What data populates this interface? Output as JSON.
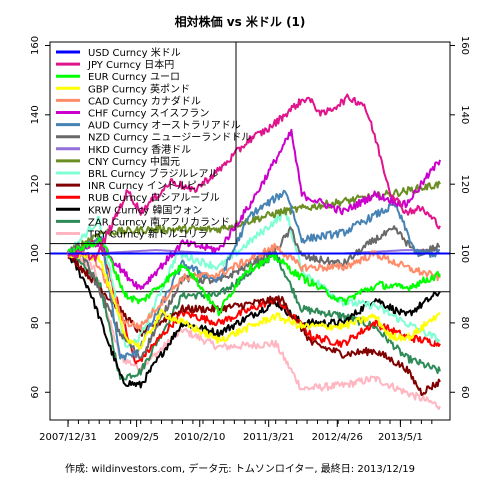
{
  "chart_data": {
    "type": "line",
    "title": "相対株価 vs 米ドル (1)",
    "caption": "作成: wildinvestors.com, データ元: トムソンロイター, 最終日: 2013/12/19",
    "xlabel": "",
    "ylabel": "",
    "x_tick_labels": [
      "2007/12/31",
      "2009/2/5",
      "2010/2/10",
      "2011/3/21",
      "2012/4/26",
      "2013/5/1"
    ],
    "x_tick_dates": [
      "2007-12-31",
      "2009-02-05",
      "2010-02-10",
      "2011-03-21",
      "2012-04-26",
      "2013-05-01"
    ],
    "x_range": [
      "2007-12-31",
      "2013-12-19"
    ],
    "ylim": [
      52,
      161
    ],
    "y_ticks": [
      60,
      80,
      100,
      120,
      140,
      160
    ],
    "y_axes": "left-and-right",
    "grid": false,
    "legend_position": "top-left",
    "reference_lines": [
      {
        "orientation": "horizontal",
        "value": 100,
        "color": "#0000ff"
      },
      {
        "orientation": "horizontal",
        "value": 89,
        "color": "#000000"
      }
    ],
    "series": [
      {
        "name": "USD Curncy 米ドル",
        "color": "#0000ff",
        "points": [
          [
            "2007-12-31",
            100
          ],
          [
            "2013-12-19",
            100
          ]
        ]
      },
      {
        "name": "JPY Curncy 日本円",
        "color": "#e0148c",
        "points": [
          [
            "2007-12-31",
            100
          ],
          [
            "2008-06-15",
            99
          ],
          [
            "2008-12-15",
            118
          ],
          [
            "2009-03-01",
            112
          ],
          [
            "2009-09-01",
            121
          ],
          [
            "2010-01-01",
            118
          ],
          [
            "2010-06-01",
            124
          ],
          [
            "2010-12-01",
            133
          ],
          [
            "2011-03-21",
            136
          ],
          [
            "2011-09-01",
            143
          ],
          [
            "2011-11-01",
            145
          ],
          [
            "2012-02-01",
            140
          ],
          [
            "2012-07-01",
            145
          ],
          [
            "2012-10-01",
            143
          ],
          [
            "2012-12-01",
            134
          ],
          [
            "2013-03-01",
            118
          ],
          [
            "2013-06-01",
            112
          ],
          [
            "2013-09-01",
            113
          ],
          [
            "2013-12-19",
            108
          ]
        ]
      },
      {
        "name": "EUR Curncy ユーロ",
        "color": "#00ff00",
        "points": [
          [
            "2007-12-31",
            100
          ],
          [
            "2008-07-15",
            104
          ],
          [
            "2008-12-01",
            88
          ],
          [
            "2009-03-01",
            86
          ],
          [
            "2009-11-15",
            97
          ],
          [
            "2010-06-01",
            83
          ],
          [
            "2010-11-01",
            95
          ],
          [
            "2011-05-01",
            99
          ],
          [
            "2011-09-01",
            94
          ],
          [
            "2012-06-01",
            86
          ],
          [
            "2012-09-15",
            89
          ],
          [
            "2013-01-01",
            91
          ],
          [
            "2013-06-01",
            90
          ],
          [
            "2013-12-19",
            94
          ]
        ]
      },
      {
        "name": "GBP Curncy 英ポンド",
        "color": "#ffff00",
        "points": [
          [
            "2007-12-31",
            100
          ],
          [
            "2008-07-01",
            99
          ],
          [
            "2008-12-01",
            76
          ],
          [
            "2009-03-01",
            73
          ],
          [
            "2009-07-01",
            83
          ],
          [
            "2010-06-01",
            75
          ],
          [
            "2011-05-01",
            82
          ],
          [
            "2011-10-01",
            79
          ],
          [
            "2012-06-01",
            79
          ],
          [
            "2012-12-01",
            82
          ],
          [
            "2013-03-01",
            76
          ],
          [
            "2013-07-01",
            76
          ],
          [
            "2013-12-19",
            83
          ]
        ]
      },
      {
        "name": "CAD Curncy カナダドル",
        "color": "#ff8c69",
        "points": [
          [
            "2007-12-31",
            100
          ],
          [
            "2008-06-01",
            99
          ],
          [
            "2008-12-01",
            80
          ],
          [
            "2009-03-01",
            79
          ],
          [
            "2009-11-01",
            93
          ],
          [
            "2010-06-01",
            94
          ],
          [
            "2011-05-01",
            102
          ],
          [
            "2011-10-01",
            96
          ],
          [
            "2012-06-01",
            96
          ],
          [
            "2012-12-01",
            100
          ],
          [
            "2013-06-01",
            96
          ],
          [
            "2013-12-19",
            93
          ]
        ]
      },
      {
        "name": "CHF Curncy スイスフラン",
        "color": "#cc00cc",
        "points": [
          [
            "2007-12-31",
            100
          ],
          [
            "2008-07-01",
            103
          ],
          [
            "2008-12-01",
            94
          ],
          [
            "2009-03-01",
            90
          ],
          [
            "2009-11-01",
            103
          ],
          [
            "2010-06-01",
            101
          ],
          [
            "2010-12-01",
            114
          ],
          [
            "2011-08-01",
            135
          ],
          [
            "2011-10-01",
            117
          ],
          [
            "2012-06-01",
            112
          ],
          [
            "2012-12-01",
            117
          ],
          [
            "2013-06-01",
            114
          ],
          [
            "2013-12-19",
            127
          ]
        ]
      },
      {
        "name": "AUD Curncy オーストラリアドル",
        "color": "#4682b4",
        "points": [
          [
            "2007-12-31",
            100
          ],
          [
            "2008-07-15",
            104
          ],
          [
            "2008-11-01",
            70
          ],
          [
            "2009-02-01",
            71
          ],
          [
            "2009-11-01",
            97
          ],
          [
            "2010-06-01",
            92
          ],
          [
            "2010-12-01",
            111
          ],
          [
            "2011-07-01",
            118
          ],
          [
            "2011-10-01",
            104
          ],
          [
            "2012-06-01",
            106
          ],
          [
            "2012-12-01",
            111
          ],
          [
            "2013-04-01",
            114
          ],
          [
            "2013-08-01",
            100
          ],
          [
            "2013-12-19",
            100
          ]
        ]
      },
      {
        "name": "NZD Curncy ニュージーランドドル",
        "color": "#696969",
        "points": [
          [
            "2007-12-31",
            100
          ],
          [
            "2008-03-01",
            102
          ],
          [
            "2008-11-01",
            77
          ],
          [
            "2009-03-01",
            70
          ],
          [
            "2009-11-01",
            93
          ],
          [
            "2010-06-01",
            92
          ],
          [
            "2011-05-01",
            101
          ],
          [
            "2011-08-01",
            107
          ],
          [
            "2011-10-01",
            99
          ],
          [
            "2012-06-01",
            97
          ],
          [
            "2012-12-01",
            104
          ],
          [
            "2013-04-01",
            107
          ],
          [
            "2013-08-01",
            100
          ],
          [
            "2013-12-19",
            102
          ]
        ]
      },
      {
        "name": "HKD Curncy 香港ドル",
        "color": "#9370db",
        "points": [
          [
            "2007-12-31",
            100
          ],
          [
            "2008-06-01",
            100
          ],
          [
            "2009-06-01",
            101
          ],
          [
            "2010-06-01",
            100
          ],
          [
            "2011-06-01",
            100
          ],
          [
            "2012-06-01",
            100
          ],
          [
            "2013-06-01",
            101
          ],
          [
            "2013-12-19",
            101
          ]
        ]
      },
      {
        "name": "CNY Curncy 中国元",
        "color": "#6b8e23",
        "points": [
          [
            "2007-12-31",
            100
          ],
          [
            "2008-07-01",
            106
          ],
          [
            "2009-06-01",
            107
          ],
          [
            "2010-06-01",
            107
          ],
          [
            "2011-06-01",
            112
          ],
          [
            "2012-06-01",
            115
          ],
          [
            "2013-06-01",
            118
          ],
          [
            "2013-12-19",
            120
          ]
        ]
      },
      {
        "name": "BRL Curncy ブラジルレアル",
        "color": "#7fffd4",
        "points": [
          [
            "2007-12-31",
            100
          ],
          [
            "2008-07-01",
            110
          ],
          [
            "2008-12-01",
            73
          ],
          [
            "2009-03-01",
            76
          ],
          [
            "2009-10-01",
            100
          ],
          [
            "2010-06-01",
            96
          ],
          [
            "2011-07-01",
            112
          ],
          [
            "2011-10-01",
            95
          ],
          [
            "2012-06-01",
            86
          ],
          [
            "2012-12-01",
            85
          ],
          [
            "2013-06-01",
            80
          ],
          [
            "2013-12-19",
            75
          ]
        ]
      },
      {
        "name": "INR Curncy インドルピー",
        "color": "#800000",
        "points": [
          [
            "2007-12-31",
            100
          ],
          [
            "2008-06-01",
            92
          ],
          [
            "2009-03-01",
            77
          ],
          [
            "2009-11-01",
            84
          ],
          [
            "2010-06-01",
            84
          ],
          [
            "2011-06-01",
            87
          ],
          [
            "2011-12-01",
            74
          ],
          [
            "2012-06-01",
            71
          ],
          [
            "2012-12-01",
            72
          ],
          [
            "2013-06-01",
            67
          ],
          [
            "2013-09-01",
            60
          ],
          [
            "2013-12-19",
            63
          ]
        ]
      },
      {
        "name": "RUB Curncy ロシアルーブル",
        "color": "#ff0000",
        "points": [
          [
            "2007-12-31",
            100
          ],
          [
            "2008-07-01",
            104
          ],
          [
            "2009-02-01",
            68
          ],
          [
            "2009-11-01",
            83
          ],
          [
            "2010-06-01",
            80
          ],
          [
            "2011-05-01",
            87
          ],
          [
            "2011-12-01",
            76
          ],
          [
            "2012-06-01",
            74
          ],
          [
            "2012-12-01",
            80
          ],
          [
            "2013-06-01",
            76
          ],
          [
            "2013-12-19",
            74
          ]
        ]
      },
      {
        "name": "KRW Curncy 韓国ウォン",
        "color": "#000000",
        "points": [
          [
            "2007-12-31",
            100
          ],
          [
            "2008-05-01",
            90
          ],
          [
            "2008-11-15",
            63
          ],
          [
            "2009-03-01",
            62
          ],
          [
            "2009-11-01",
            80
          ],
          [
            "2010-06-01",
            77
          ],
          [
            "2011-05-01",
            86
          ],
          [
            "2011-10-01",
            80
          ],
          [
            "2012-06-01",
            80
          ],
          [
            "2012-12-01",
            87
          ],
          [
            "2013-06-01",
            82
          ],
          [
            "2013-12-19",
            89
          ]
        ]
      },
      {
        "name": "ZAR Curncy 南アフリカランド",
        "color": "#2e8b57",
        "points": [
          [
            "2007-12-31",
            100
          ],
          [
            "2008-07-01",
            92
          ],
          [
            "2008-11-01",
            64
          ],
          [
            "2009-03-01",
            66
          ],
          [
            "2009-11-01",
            88
          ],
          [
            "2010-06-01",
            88
          ],
          [
            "2011-05-01",
            100
          ],
          [
            "2011-10-01",
            84
          ],
          [
            "2012-06-01",
            82
          ],
          [
            "2012-12-01",
            79
          ],
          [
            "2013-06-01",
            70
          ],
          [
            "2013-12-19",
            66
          ]
        ]
      },
      {
        "name": "TRY Curncy 新トルコリラ",
        "color": "#ffb6c1",
        "points": [
          [
            "2007-12-31",
            100
          ],
          [
            "2008-06-01",
            96
          ],
          [
            "2008-11-01",
            70
          ],
          [
            "2009-03-01",
            67
          ],
          [
            "2009-11-01",
            78
          ],
          [
            "2010-06-01",
            73
          ],
          [
            "2011-05-01",
            74
          ],
          [
            "2011-10-01",
            61
          ],
          [
            "2012-06-01",
            62
          ],
          [
            "2012-12-01",
            64
          ],
          [
            "2013-06-01",
            60
          ],
          [
            "2013-12-19",
            56
          ]
        ]
      }
    ]
  }
}
